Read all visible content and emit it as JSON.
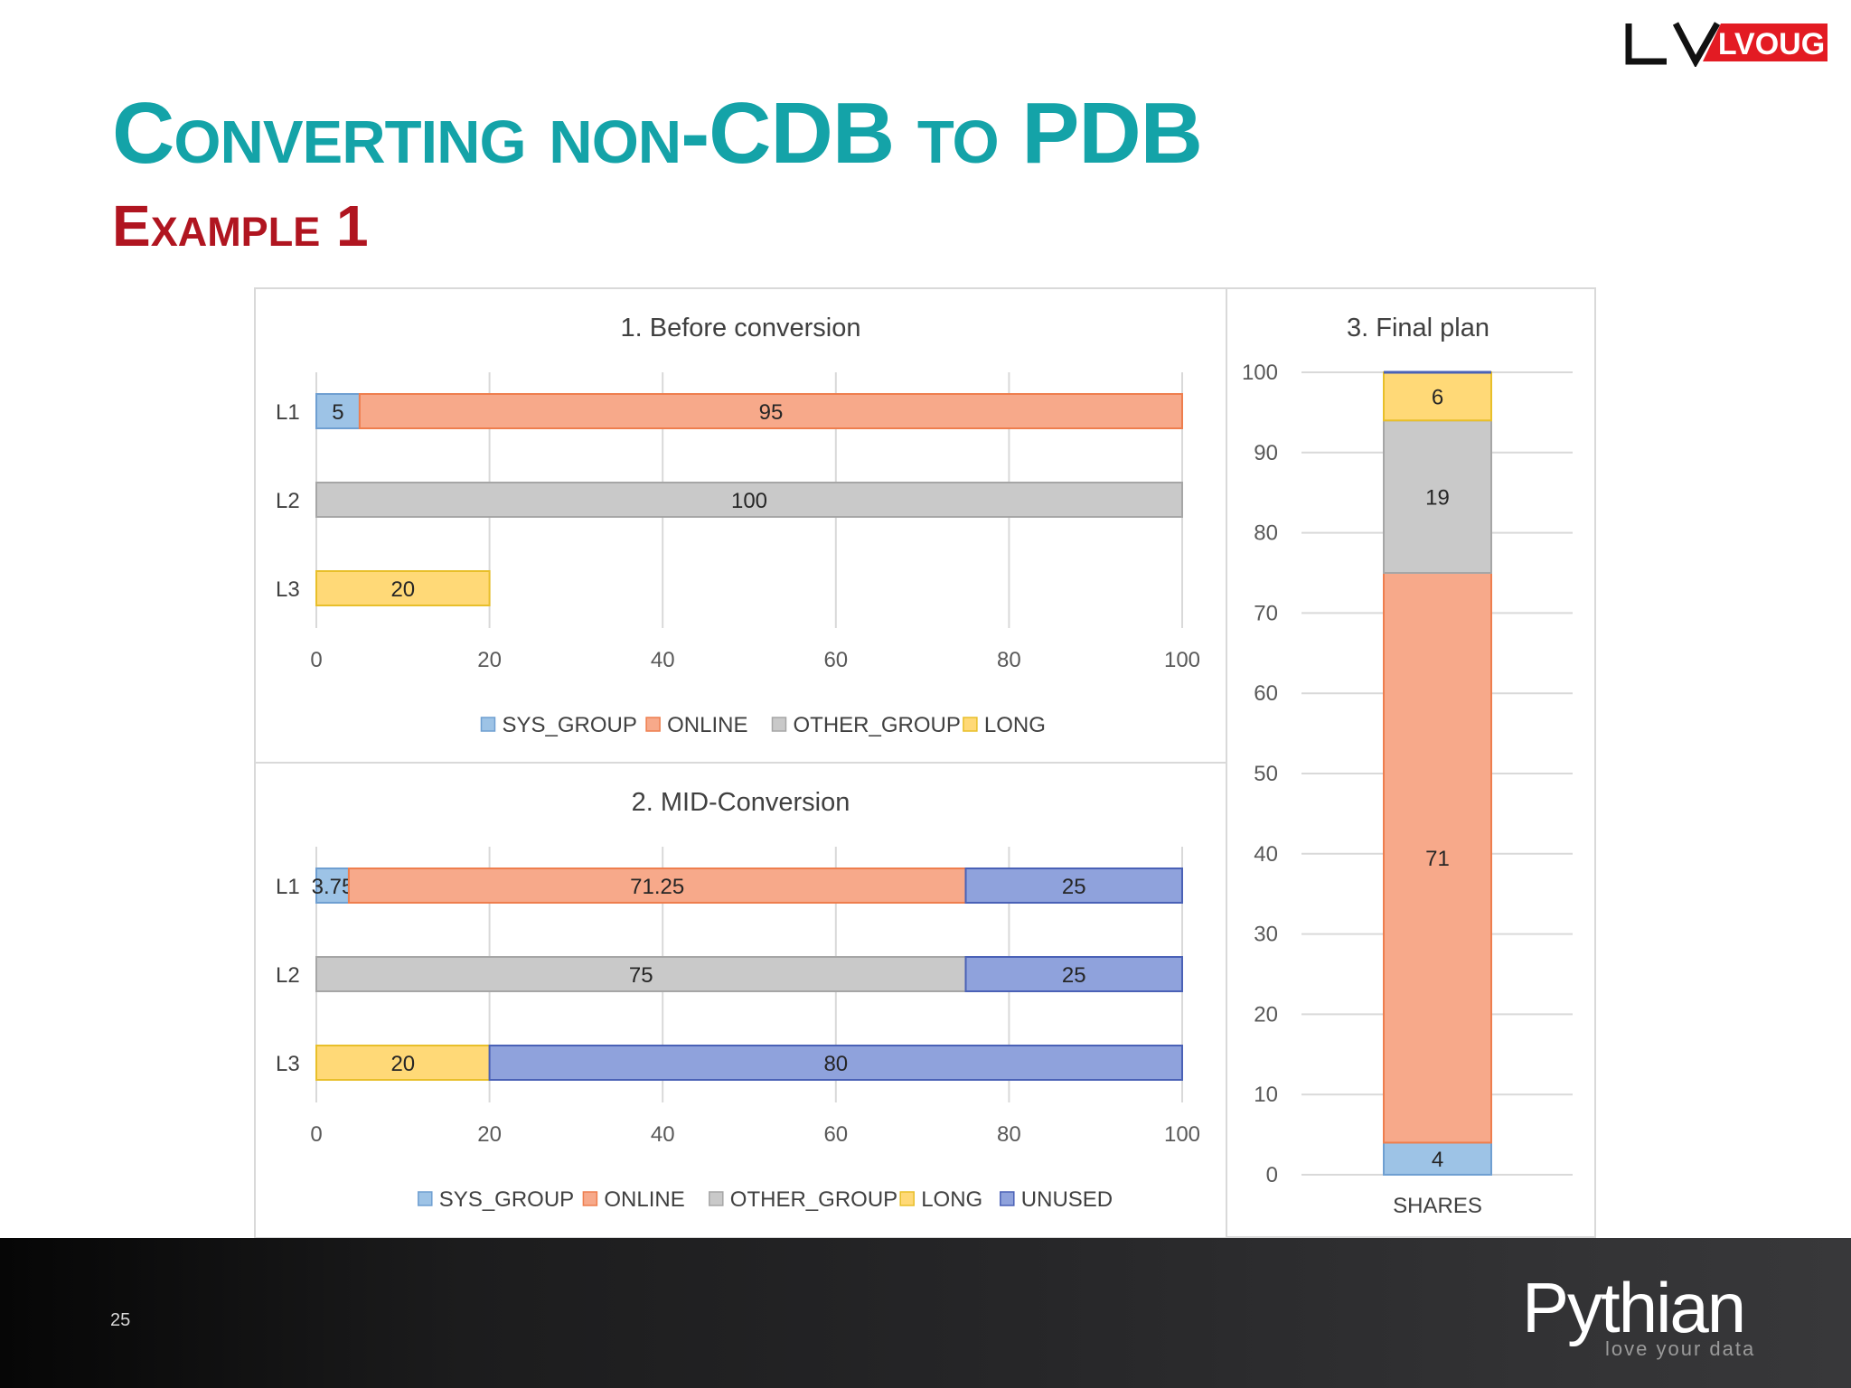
{
  "slide": {
    "title": "Converting non-CDB to PDB",
    "subtitle": "Example 1",
    "page_number": "25",
    "logo_top": "LVOUG",
    "logo_bottom": "Pythian",
    "logo_bottom_tagline": "love your data"
  },
  "colors": {
    "SYS_GROUP": "#9dc3e6",
    "ONLINE": "#f7a98a",
    "OTHER_GROUP": "#c9c9c9",
    "LONG": "#ffd977",
    "UNUSED": "#8fa2dc",
    "title": "#14a3a8",
    "subtitle": "#b01520"
  },
  "chart_data": [
    {
      "type": "bar",
      "orientation": "horizontal",
      "stacked": true,
      "title": "1. Before conversion",
      "categories": [
        "L1",
        "L2",
        "L3"
      ],
      "series": [
        {
          "name": "SYS_GROUP",
          "values": [
            5,
            null,
            null
          ]
        },
        {
          "name": "ONLINE",
          "values": [
            95,
            null,
            null
          ]
        },
        {
          "name": "OTHER_GROUP",
          "values": [
            null,
            100,
            null
          ]
        },
        {
          "name": "LONG",
          "values": [
            null,
            null,
            20
          ]
        }
      ],
      "xlim": [
        0,
        100
      ],
      "xticks": [
        0,
        20,
        40,
        60,
        80,
        100
      ],
      "grid": true,
      "legend": "bottom"
    },
    {
      "type": "bar",
      "orientation": "horizontal",
      "stacked": true,
      "title": "2. MID-Conversion",
      "categories": [
        "L1",
        "L2",
        "L3"
      ],
      "series": [
        {
          "name": "SYS_GROUP",
          "values": [
            3.75,
            null,
            null
          ]
        },
        {
          "name": "ONLINE",
          "values": [
            71.25,
            null,
            null
          ]
        },
        {
          "name": "OTHER_GROUP",
          "values": [
            null,
            75,
            null
          ]
        },
        {
          "name": "LONG",
          "values": [
            null,
            null,
            20
          ]
        },
        {
          "name": "UNUSED",
          "values": [
            25,
            25,
            80
          ]
        }
      ],
      "xlim": [
        0,
        100
      ],
      "xticks": [
        0,
        20,
        40,
        60,
        80,
        100
      ],
      "grid": true,
      "legend": "bottom"
    },
    {
      "type": "bar",
      "orientation": "vertical",
      "stacked": true,
      "title": "3. Final plan",
      "categories": [
        "SHARES"
      ],
      "series": [
        {
          "name": "SYS_GROUP",
          "values": [
            4
          ]
        },
        {
          "name": "ONLINE",
          "values": [
            71
          ]
        },
        {
          "name": "OTHER_GROUP",
          "values": [
            19
          ]
        },
        {
          "name": "LONG",
          "values": [
            6
          ]
        }
      ],
      "ylim": [
        0,
        100
      ],
      "yticks": [
        0,
        10,
        20,
        30,
        40,
        50,
        60,
        70,
        80,
        90,
        100
      ],
      "grid": true,
      "legend": "none"
    }
  ]
}
